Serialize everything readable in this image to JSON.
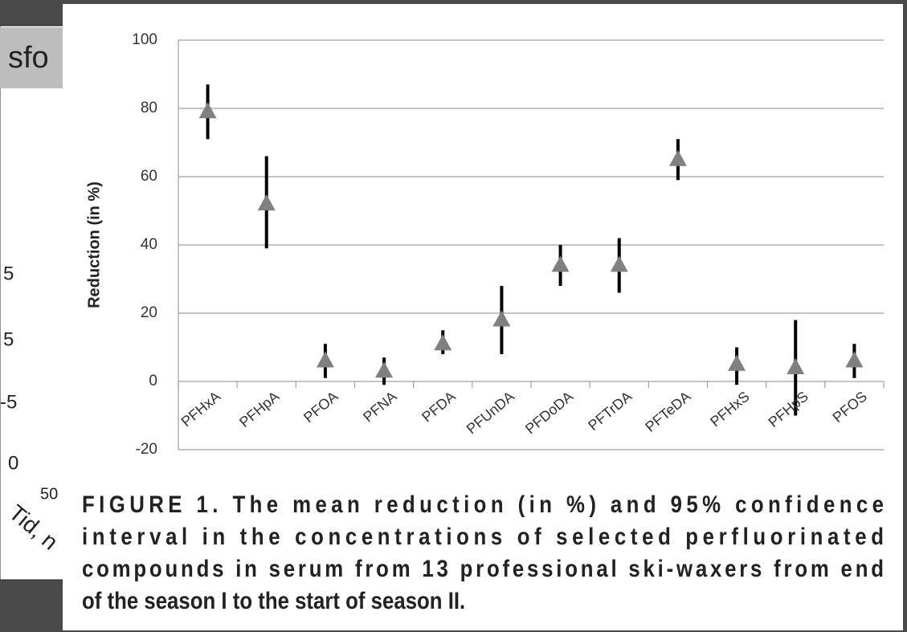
{
  "background": {
    "heading": "sfo",
    "labels": [
      "5",
      "5",
      "-5",
      "0",
      "50",
      "Tid, n"
    ]
  },
  "chart_data": {
    "type": "errorbar",
    "ylabel": "Reduction (in %)",
    "categories": [
      "PFHxA",
      "PFHpA",
      "PFOA",
      "PFNA",
      "PFDA",
      "PFUnDA",
      "PFDoDA",
      "PFTrDA",
      "PFTeDA",
      "PFHxS",
      "PFHpS",
      "PFOS"
    ],
    "values": [
      79,
      52,
      6,
      3,
      11,
      18,
      34,
      34,
      65,
      5,
      4,
      6
    ],
    "lower": [
      71,
      39,
      1,
      -1,
      8,
      8,
      28,
      26,
      59,
      -1,
      -10,
      1
    ],
    "upper": [
      87,
      66,
      11,
      7,
      15,
      28,
      40,
      42,
      71,
      10,
      18,
      11
    ],
    "color": "#808080",
    "errorcolor": "#000000",
    "ylim": [
      -20,
      100
    ],
    "yticks": [
      -20,
      0,
      20,
      40,
      60,
      80,
      100
    ],
    "grid": true,
    "caption": [
      "FIGURE 1. The mean reduction (in %) and 95% confidence",
      "interval in the concentrations of selected perfluorinated",
      "compounds in serum from 13 professional ski-waxers from end",
      "of the season I to the start of season II."
    ]
  }
}
